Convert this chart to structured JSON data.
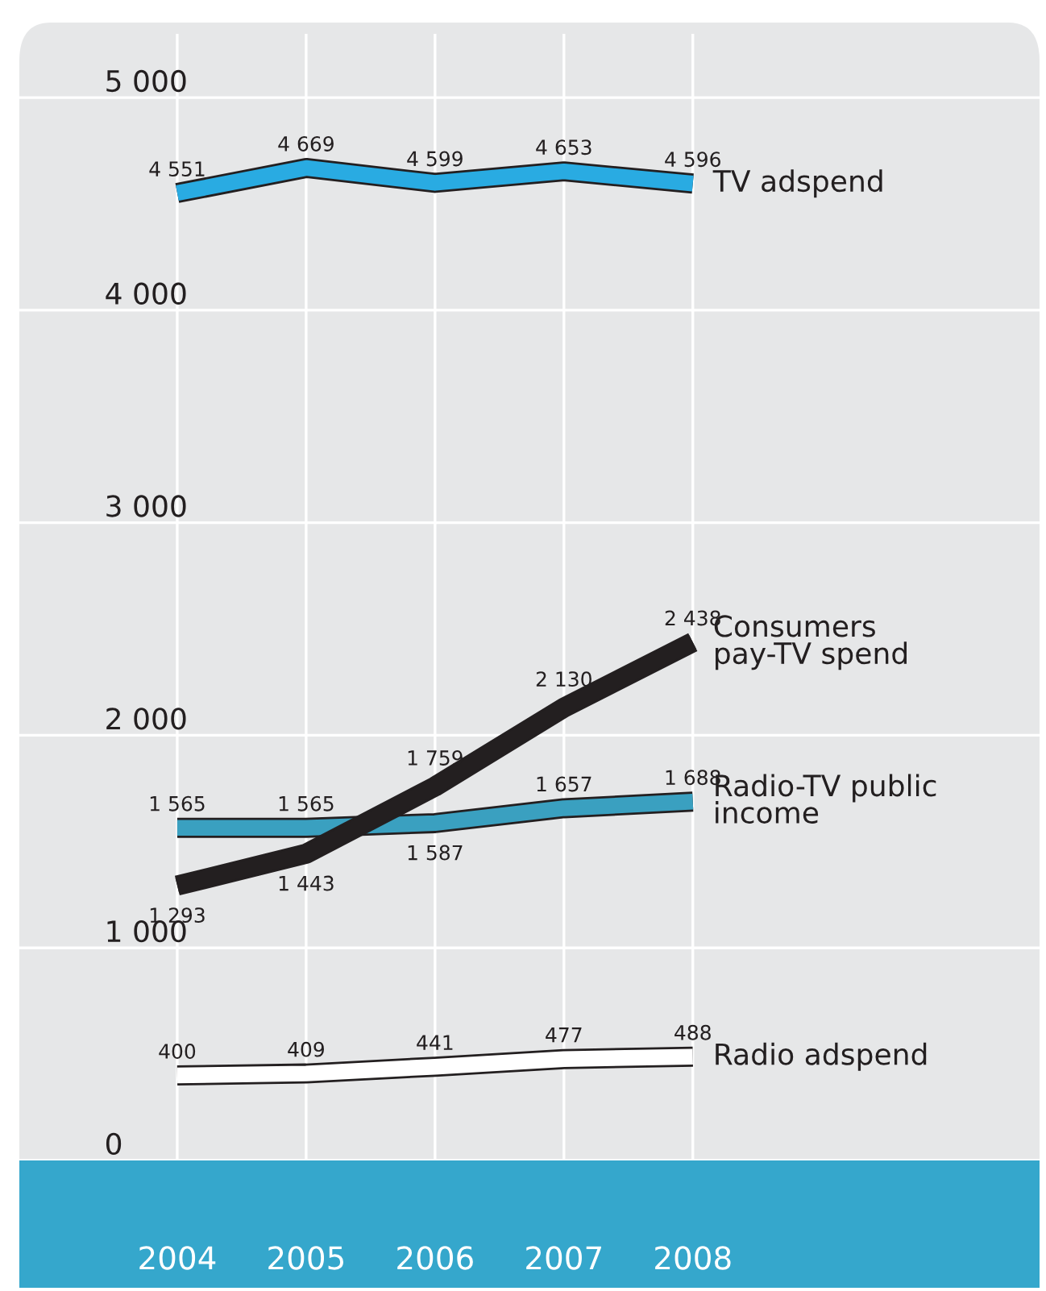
{
  "chart_data": {
    "type": "line",
    "categories": [
      "2004",
      "2005",
      "2006",
      "2007",
      "2008"
    ],
    "ylim": [
      0,
      5300
    ],
    "yticks": [
      {
        "value": 0,
        "label": "0"
      },
      {
        "value": 1000,
        "label": "1 000"
      },
      {
        "value": 2000,
        "label": "2 000"
      },
      {
        "value": 3000,
        "label": "3 000"
      },
      {
        "value": 4000,
        "label": "4 000"
      },
      {
        "value": 5000,
        "label": "5 000"
      }
    ],
    "grid": true,
    "legend": false,
    "marker": "none",
    "line_style": "solid",
    "series": [
      {
        "name": "TV adspend",
        "color": "#29abe2",
        "values": [
          4551,
          4669,
          4599,
          4653,
          4596
        ],
        "value_labels": [
          "4 551",
          "4 669",
          "4 599",
          "4 653",
          "4 596"
        ]
      },
      {
        "name": "Consumers\npay-TV spend",
        "color": "#231f20",
        "values": [
          1293,
          1443,
          1759,
          2130,
          2438
        ],
        "value_labels": [
          "1 293",
          "1 443",
          "1 759",
          "2 130",
          "2 438"
        ]
      },
      {
        "name": "Radio-TV public\nincome",
        "color": "#3aa0c0",
        "values": [
          1565,
          1565,
          1587,
          1657,
          1688
        ],
        "value_labels": [
          "1 565",
          "1 565",
          "1 587",
          "1 657",
          "1 688"
        ]
      },
      {
        "name": "Radio adspend",
        "color": "#ffffff",
        "values": [
          400,
          409,
          441,
          477,
          488
        ],
        "value_labels": [
          "400",
          "409",
          "441",
          "477",
          "488"
        ]
      }
    ]
  }
}
